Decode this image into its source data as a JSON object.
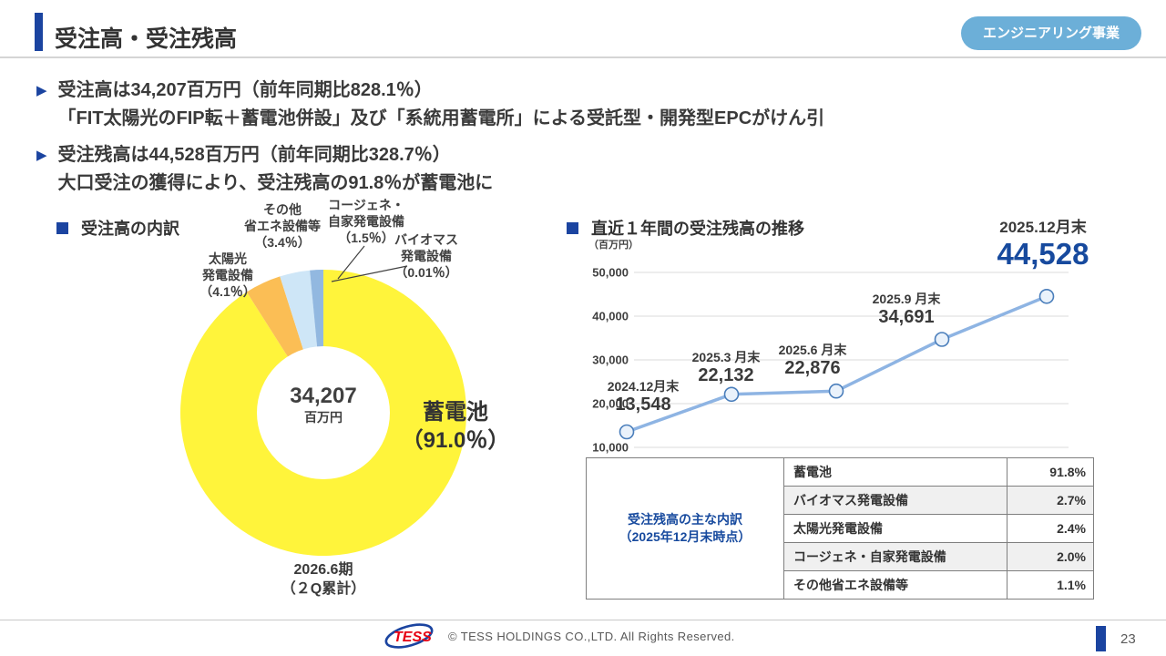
{
  "colors": {
    "brand_blue": "#1b44a0",
    "value_blue": "#174a9e",
    "badge_blue": "#6cafd8",
    "line_blue": "#8eb4e3",
    "grid_gray": "#dbdbdb",
    "logo_red": "#e60012"
  },
  "icons": {
    "bullet": "▶"
  },
  "header": {
    "title": "受注高・受注残高",
    "badge": "エンジニアリング事業"
  },
  "bullets": [
    {
      "line1": "受注高は34,207百万円（前年同期比828.1％）",
      "line2": "「FIT太陽光のFIP転＋蓄電池併設」及び「系統用蓄電所」による受託型・開発型EPCがけん引"
    },
    {
      "line1": "受注残高は44,528百万円（前年同期比328.7％）",
      "line2": "大口受注の獲得により、受注残高の91.8％が蓄電池に"
    }
  ],
  "pie_section": {
    "title": "受注高の内訳",
    "center": {
      "value": "34,207",
      "unit": "百万円"
    },
    "period": {
      "l1": "2026.6期",
      "l2": "（２Q累計）"
    },
    "labels": {
      "other": [
        "その他",
        "省エネ設備等",
        "（3.4％）"
      ],
      "cogen": [
        "コージェネ・",
        "自家発電設備",
        "（1.5％）"
      ],
      "biomass": [
        "バイオマス",
        "発電設備",
        "（0.01％）"
      ],
      "solar": [
        "太陽光",
        "発電設備",
        "（4.1％）"
      ],
      "battery": [
        "蓄電池",
        "（91.0％）"
      ]
    }
  },
  "line_section": {
    "title": "直近１年間の受注残高の推移",
    "unit": "（百万円）",
    "highlight": {
      "date": "2025.12月末",
      "value": "44,528"
    }
  },
  "backlog_table": {
    "header_l1": "受注残高の主な内訳",
    "header_l2": "（2025年12月末時点）",
    "rows": [
      {
        "label": "蓄電池",
        "value": "91.8%"
      },
      {
        "label": "バイオマス発電設備",
        "value": "2.7%"
      },
      {
        "label": "太陽光発電設備",
        "value": "2.4%"
      },
      {
        "label": "コージェネ・自家発電設備",
        "value": "2.0%"
      },
      {
        "label": "その他省エネ設備等",
        "value": "1.1%"
      }
    ]
  },
  "footer": {
    "logo_text": "TESS",
    "copyright": "© TESS HOLDINGS CO.,LTD. All Rights Reserved.",
    "page_number": "23"
  },
  "chart_data": [
    {
      "type": "pie",
      "donut": true,
      "title": "受注高の内訳",
      "center_value": 34207,
      "center_unit": "百万円",
      "period": "2026.6期（２Q累計）",
      "slices": [
        {
          "label": "蓄電池",
          "pct": 91.0,
          "color": "#fff43b"
        },
        {
          "label": "太陽光発電設備",
          "pct": 4.1,
          "color": "#fbbe55"
        },
        {
          "label": "その他省エネ設備等",
          "pct": 3.4,
          "color": "#cee6f7"
        },
        {
          "label": "コージェネ・自家発電設備",
          "pct": 1.5,
          "color": "#92b8e0"
        },
        {
          "label": "バイオマス発電設備",
          "pct": 0.01,
          "color": "#5b9bd5"
        }
      ]
    },
    {
      "type": "line",
      "title": "直近１年間の受注残高の推移",
      "ylabel": "（百万円）",
      "categories": [
        "2024.12月末",
        "2025.3 月末",
        "2025.6 月末",
        "2025.9 月末",
        "2025.12月末"
      ],
      "values": [
        13548,
        22132,
        22876,
        34691,
        44528
      ],
      "values_fmt": [
        "13,548",
        "22,132",
        "22,876",
        "34,691",
        "44,528"
      ],
      "ylim": [
        10000,
        50000
      ],
      "ytick_step": 10000,
      "yticks_fmt": [
        "10,000",
        "20,000",
        "30,000",
        "40,000",
        "50,000"
      ],
      "grid": true,
      "legend": "none",
      "line_color": "#8eb4e3",
      "marker_fill": "#eaf2fb",
      "marker_stroke": "#4a7ebb"
    }
  ]
}
